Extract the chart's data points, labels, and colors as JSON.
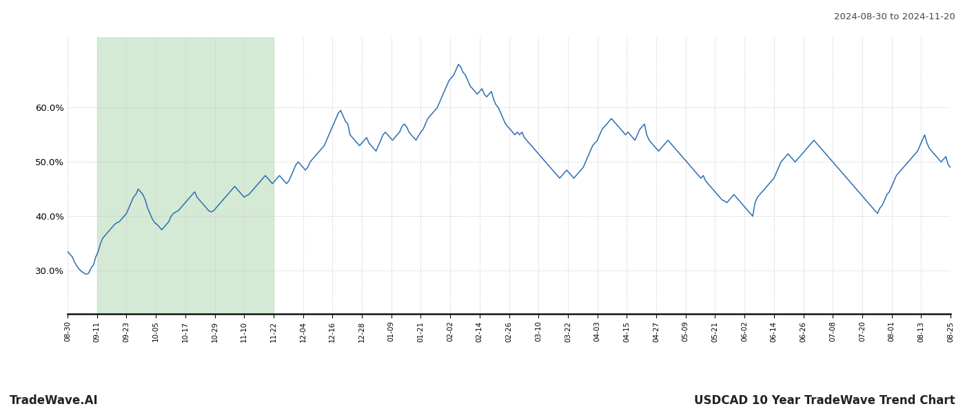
{
  "title_top_right": "2024-08-30 to 2024-11-20",
  "title_bottom_left": "TradeWave.AI",
  "title_bottom_right": "USDCAD 10 Year TradeWave Trend Chart",
  "bg_color": "#ffffff",
  "line_color": "#2b6cb0",
  "shade_color": "#d4ead4",
  "ylim": [
    22,
    73
  ],
  "yticks": [
    30.0,
    40.0,
    50.0,
    60.0
  ],
  "grid_color": "#c8c8c8",
  "x_labels": [
    "08-30",
    "09-11",
    "09-23",
    "10-05",
    "10-17",
    "10-29",
    "11-10",
    "11-22",
    "12-04",
    "12-16",
    "12-28",
    "01-09",
    "01-21",
    "02-02",
    "02-14",
    "02-26",
    "03-10",
    "03-22",
    "04-03",
    "04-15",
    "04-27",
    "05-09",
    "05-21",
    "06-02",
    "06-14",
    "06-26",
    "07-08",
    "07-20",
    "08-01",
    "08-13",
    "08-25"
  ],
  "shade_start_label": "09-11",
  "shade_end_label": "11-22",
  "y_values": [
    33.5,
    33.0,
    32.5,
    31.5,
    30.8,
    30.2,
    29.8,
    29.5,
    29.3,
    29.5,
    30.5,
    31.0,
    32.5,
    33.5,
    35.0,
    36.0,
    36.5,
    37.0,
    37.5,
    38.0,
    38.5,
    38.8,
    39.0,
    39.5,
    40.0,
    40.5,
    41.5,
    42.5,
    43.5,
    44.0,
    45.0,
    44.5,
    44.0,
    43.0,
    41.5,
    40.5,
    39.5,
    38.8,
    38.5,
    38.0,
    37.5,
    38.0,
    38.5,
    39.0,
    40.0,
    40.5,
    40.8,
    41.0,
    41.5,
    42.0,
    42.5,
    43.0,
    43.5,
    44.0,
    44.5,
    43.5,
    43.0,
    42.5,
    42.0,
    41.5,
    41.0,
    40.8,
    41.0,
    41.5,
    42.0,
    42.5,
    43.0,
    43.5,
    44.0,
    44.5,
    45.0,
    45.5,
    45.0,
    44.5,
    44.0,
    43.5,
    43.8,
    44.0,
    44.5,
    45.0,
    45.5,
    46.0,
    46.5,
    47.0,
    47.5,
    47.0,
    46.5,
    46.0,
    46.5,
    47.0,
    47.5,
    47.0,
    46.5,
    46.0,
    46.5,
    47.5,
    48.5,
    49.5,
    50.0,
    49.5,
    49.0,
    48.5,
    49.0,
    50.0,
    50.5,
    51.0,
    51.5,
    52.0,
    52.5,
    53.0,
    54.0,
    55.0,
    56.0,
    57.0,
    58.0,
    59.0,
    59.5,
    58.5,
    57.5,
    57.0,
    55.0,
    54.5,
    54.0,
    53.5,
    53.0,
    53.5,
    54.0,
    54.5,
    53.5,
    53.0,
    52.5,
    52.0,
    53.0,
    54.0,
    55.0,
    55.5,
    55.0,
    54.5,
    54.0,
    54.5,
    55.0,
    55.5,
    56.5,
    57.0,
    56.5,
    55.5,
    55.0,
    54.5,
    54.0,
    54.8,
    55.5,
    56.0,
    57.0,
    58.0,
    58.5,
    59.0,
    59.5,
    60.0,
    61.0,
    62.0,
    63.0,
    64.0,
    65.0,
    65.5,
    66.0,
    67.0,
    68.0,
    67.5,
    66.5,
    66.0,
    65.0,
    64.0,
    63.5,
    63.0,
    62.5,
    63.0,
    63.5,
    62.5,
    62.0,
    62.5,
    63.0,
    61.5,
    60.5,
    60.0,
    59.0,
    58.0,
    57.0,
    56.5,
    56.0,
    55.5,
    55.0,
    55.5,
    55.0,
    55.5,
    54.5,
    54.0,
    53.5,
    53.0,
    52.5,
    52.0,
    51.5,
    51.0,
    50.5,
    50.0,
    49.5,
    49.0,
    48.5,
    48.0,
    47.5,
    47.0,
    47.5,
    48.0,
    48.5,
    48.0,
    47.5,
    47.0,
    47.5,
    48.0,
    48.5,
    49.0,
    50.0,
    51.0,
    52.0,
    53.0,
    53.5,
    54.0,
    55.0,
    56.0,
    56.5,
    57.0,
    57.5,
    58.0,
    57.5,
    57.0,
    56.5,
    56.0,
    55.5,
    55.0,
    55.5,
    55.0,
    54.5,
    54.0,
    55.0,
    56.0,
    56.5,
    57.0,
    55.0,
    54.0,
    53.5,
    53.0,
    52.5,
    52.0,
    52.5,
    53.0,
    53.5,
    54.0,
    53.5,
    53.0,
    52.5,
    52.0,
    51.5,
    51.0,
    50.5,
    50.0,
    49.5,
    49.0,
    48.5,
    48.0,
    47.5,
    47.0,
    47.5,
    46.5,
    46.0,
    45.5,
    45.0,
    44.5,
    44.0,
    43.5,
    43.0,
    42.8,
    42.5,
    43.0,
    43.5,
    44.0,
    43.5,
    43.0,
    42.5,
    42.0,
    41.5,
    41.0,
    40.5,
    40.0,
    42.5,
    43.5,
    44.0,
    44.5,
    45.0,
    45.5,
    46.0,
    46.5,
    47.0,
    48.0,
    49.0,
    50.0,
    50.5,
    51.0,
    51.5,
    51.0,
    50.5,
    50.0,
    50.5,
    51.0,
    51.5,
    52.0,
    52.5,
    53.0,
    53.5,
    54.0,
    53.5,
    53.0,
    52.5,
    52.0,
    51.5,
    51.0,
    50.5,
    50.0,
    49.5,
    49.0,
    48.5,
    48.0,
    47.5,
    47.0,
    46.5,
    46.0,
    45.5,
    45.0,
    44.5,
    44.0,
    43.5,
    43.0,
    42.5,
    42.0,
    41.5,
    41.0,
    40.5,
    41.5,
    42.0,
    43.0,
    44.0,
    44.5,
    45.5,
    46.5,
    47.5,
    48.0,
    48.5,
    49.0,
    49.5,
    50.0,
    50.5,
    51.0,
    51.5,
    52.0,
    53.0,
    54.0,
    55.0,
    53.5,
    52.5,
    52.0,
    51.5,
    51.0,
    50.5,
    50.0,
    50.5,
    51.0,
    49.5,
    49.0
  ]
}
